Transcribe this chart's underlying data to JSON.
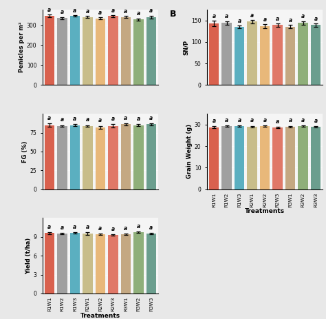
{
  "categories": [
    "R1W1",
    "R1W2",
    "R1W3",
    "R2W1",
    "R2W2",
    "R2W3",
    "R3W1",
    "R3W2",
    "R3W3"
  ],
  "bar_colors": [
    "#D9614E",
    "#A0A0A0",
    "#5BAFC0",
    "#C8BD8A",
    "#E8B87A",
    "#E07868",
    "#C4A882",
    "#8FAF7A",
    "#6B9E8E"
  ],
  "panicles": [
    347,
    337,
    348,
    342,
    336,
    347,
    342,
    330,
    342
  ],
  "panicles_err": [
    7,
    5,
    4,
    5,
    5,
    5,
    5,
    5,
    7
  ],
  "snp": [
    143,
    144,
    135,
    147,
    136,
    139,
    135,
    144,
    139
  ],
  "snp_err": [
    6,
    4,
    3,
    4,
    5,
    4,
    4,
    4,
    4
  ],
  "fg": [
    85,
    84,
    85,
    84,
    82,
    84,
    86,
    85,
    86
  ],
  "fg_err": [
    2,
    1,
    1,
    1,
    2,
    2,
    1,
    1,
    1
  ],
  "grain_weight": [
    28.8,
    29.2,
    29.3,
    29.1,
    29.2,
    28.6,
    29.1,
    29.2,
    28.9
  ],
  "grain_weight_err": [
    0.35,
    0.3,
    0.35,
    0.3,
    0.35,
    0.28,
    0.3,
    0.28,
    0.28
  ],
  "yield_vals": [
    9.58,
    9.52,
    9.6,
    9.48,
    9.37,
    9.28,
    9.38,
    9.7,
    9.52
  ],
  "yield_err": [
    0.18,
    0.12,
    0.12,
    0.22,
    0.1,
    0.1,
    0.12,
    0.12,
    0.12
  ],
  "sig_labels": [
    "a",
    "a",
    "a",
    "a",
    "a",
    "a",
    "a",
    "a",
    "a"
  ],
  "ylabel_panicles": "Penicles per m²",
  "ylabel_snp": "SN/P",
  "ylabel_fg": "FG (%)",
  "ylabel_gw": "Grain Weight (g)",
  "ylabel_yield": "Yield (t/ha)",
  "xlabel": "Treatments",
  "panel_label_B": "B",
  "fig_bg": "#E8E8E8",
  "ax_bg": "#F5F5F5"
}
